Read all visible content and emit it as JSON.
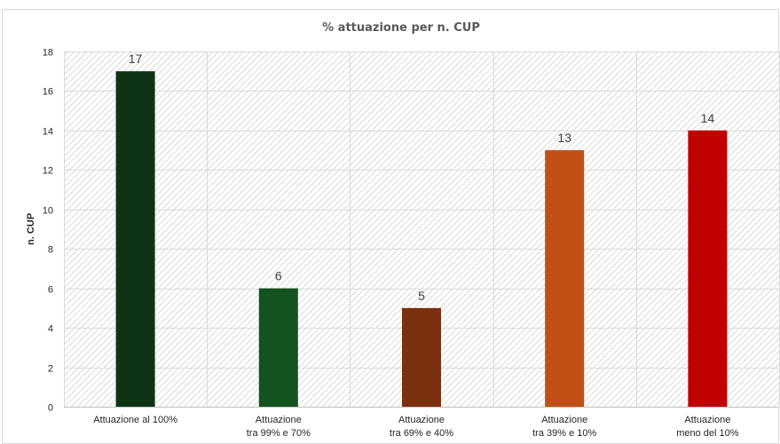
{
  "chart_data": {
    "type": "bar",
    "title": "% attuazione per n. CUP",
    "xlabel": "",
    "ylabel": "n. CUP",
    "ylim": [
      0,
      18
    ],
    "yticks": [
      0,
      2,
      4,
      6,
      8,
      10,
      12,
      14,
      16,
      18
    ],
    "grid": true,
    "categories": [
      [
        "Attuazione al 100%"
      ],
      [
        "Attuazione",
        "tra 99% e 70%"
      ],
      [
        "Attuazione",
        "tra 69% e 40%"
      ],
      [
        "Attuazione",
        "tra 39% e 10%"
      ],
      [
        "Attuazione",
        "meno del 10%"
      ]
    ],
    "values": [
      17,
      6,
      5,
      13,
      14
    ],
    "colors": [
      "#0e3315",
      "#145220",
      "#7b3010",
      "#c05015",
      "#c00000"
    ]
  }
}
